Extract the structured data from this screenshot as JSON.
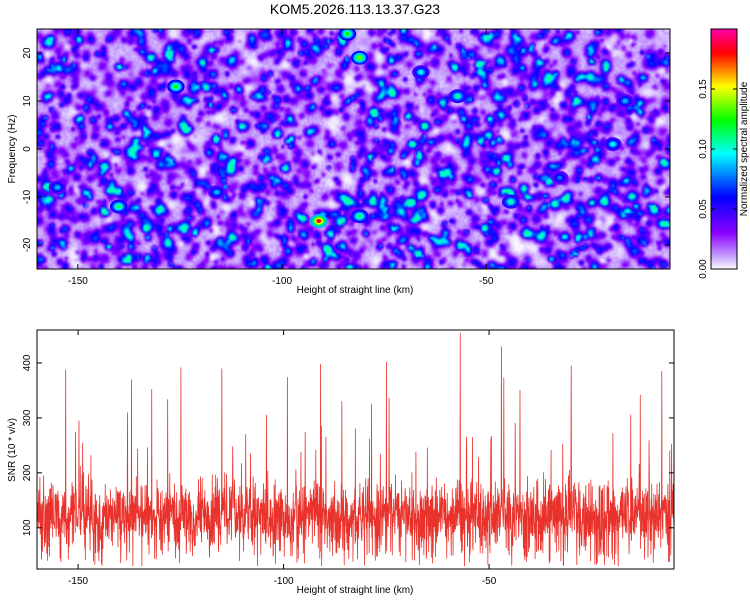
{
  "title": "KOM5.2026.113.13.37.G23",
  "chart_data": [
    {
      "type": "heatmap",
      "title": "KOM5.2026.113.13.37.G23",
      "xlabel": "Height of straight line (km)",
      "ylabel": "Frequency (Hz)",
      "xlim": [
        -160,
        -5
      ],
      "ylim": [
        -25,
        25
      ],
      "xticks": [
        -150,
        -100,
        -50
      ],
      "xtick_labels": [
        "-150",
        "-100",
        "-50"
      ],
      "yticks": [
        -20,
        -10,
        0,
        10,
        20
      ],
      "ytick_labels": [
        "-20",
        "-10",
        "0",
        "10",
        "20"
      ],
      "colorbar": {
        "label": "Normalized spectral amplitude",
        "range": [
          0,
          0.2
        ],
        "ticks": [
          0,
          0.05,
          0.1,
          0.15
        ],
        "tick_labels": [
          "0.00",
          "0.05",
          "0.10",
          "0.15"
        ],
        "colors": [
          "#ffffff",
          "#8a00ff",
          "#0000ff",
          "#00ffff",
          "#00ff00",
          "#ffff00",
          "#ff0000",
          "#ff00aa"
        ]
      },
      "peak": {
        "x": -91,
        "y": -15,
        "value": 0.19
      },
      "hotspots": [
        {
          "x": -81,
          "y": 19,
          "value": 0.14
        },
        {
          "x": -84,
          "y": 24,
          "value": 0.13
        },
        {
          "x": -126,
          "y": 13,
          "value": 0.13
        },
        {
          "x": -140,
          "y": -12,
          "value": 0.12
        },
        {
          "x": -81,
          "y": -14,
          "value": 0.12
        },
        {
          "x": -44,
          "y": -11,
          "value": 0.11
        },
        {
          "x": -57,
          "y": 11,
          "value": 0.11
        },
        {
          "x": -66,
          "y": 16,
          "value": 0.1
        },
        {
          "x": -19,
          "y": 1,
          "value": 0.1
        },
        {
          "x": -155,
          "y": -8,
          "value": 0.09
        },
        {
          "x": -116,
          "y": -9,
          "value": 0.09
        },
        {
          "x": -16,
          "y": 10,
          "value": 0.09
        },
        {
          "x": -32,
          "y": -6,
          "value": 0.08
        }
      ],
      "background_level": 0.03
    },
    {
      "type": "line",
      "xlabel": "Height of straight line (km)",
      "ylabel": "SNR (10 * v/v)",
      "xlim": [
        -160,
        -5
      ],
      "ylim": [
        25,
        460
      ],
      "xticks": [
        -150,
        -100,
        -50
      ],
      "xtick_labels": [
        "-150",
        "-100",
        "-50"
      ],
      "yticks": [
        100,
        200,
        300,
        400
      ],
      "ytick_labels": [
        "100",
        "200",
        "300",
        "400"
      ],
      "series": [
        {
          "name": "SNR",
          "color": "#e8322b",
          "n_points": 2400,
          "baseline": 125,
          "spread": 75,
          "minimum": 30,
          "maximum": 455,
          "spikes": [
            {
              "x": -57,
              "y": 455
            },
            {
              "x": -30,
              "y": 395
            },
            {
              "x": -153,
              "y": 388
            },
            {
              "x": -125,
              "y": 392
            },
            {
              "x": -91,
              "y": 398
            },
            {
              "x": -75,
              "y": 402
            },
            {
              "x": -47,
              "y": 430
            },
            {
              "x": -115,
              "y": 390
            },
            {
              "x": -137,
              "y": 370
            },
            {
              "x": -8,
              "y": 385
            }
          ]
        }
      ]
    }
  ]
}
